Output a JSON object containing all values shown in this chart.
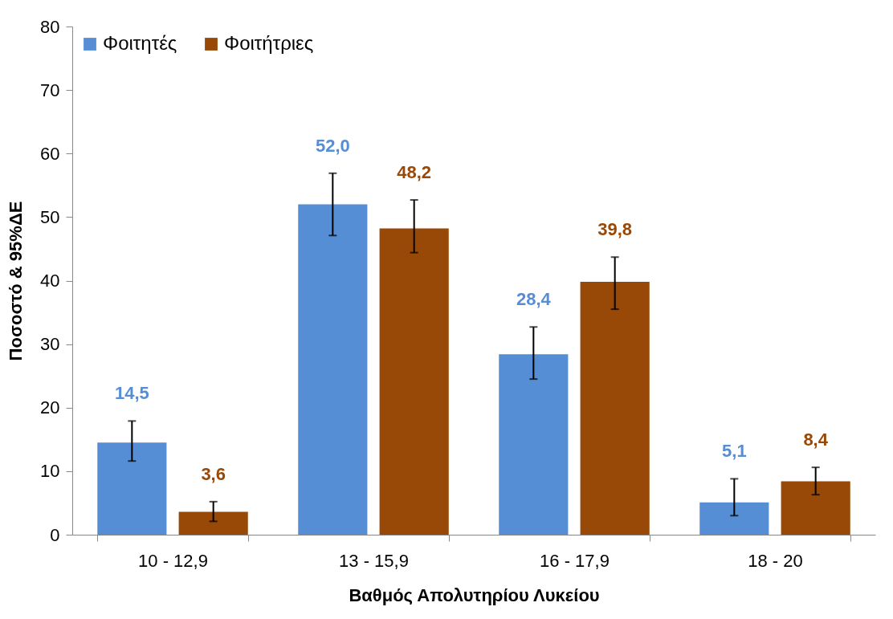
{
  "chart_data": {
    "type": "bar",
    "xlabel": "Βαθμός Απολυτηρίου Λυκείου",
    "ylabel": "Ποσοστό & 95%ΔΕ",
    "categories": [
      "10 - 12,9",
      "13 - 15,9",
      "16 - 17,9",
      "18 - 20"
    ],
    "series": [
      {
        "name": "Φοιτητές",
        "color": "#558ed5",
        "values": [
          14.5,
          52.0,
          28.4,
          5.1
        ],
        "value_labels": [
          "14,5",
          "52,0",
          "28,4",
          "5,1"
        ],
        "errors": [
          [
            11.6,
            17.9
          ],
          [
            47.1,
            56.9
          ],
          [
            24.5,
            32.7
          ],
          [
            3.0,
            8.8
          ]
        ]
      },
      {
        "name": "Φοιτήτριες",
        "color": "#984807",
        "values": [
          3.6,
          48.2,
          39.8,
          8.4
        ],
        "value_labels": [
          "3,6",
          "48,2",
          "39,8",
          "8,4"
        ],
        "errors": [
          [
            2.1,
            5.2
          ],
          [
            44.4,
            52.7
          ],
          [
            35.5,
            43.7
          ],
          [
            6.3,
            10.6
          ]
        ]
      }
    ],
    "ylim": [
      0,
      80
    ],
    "yticks": [
      0,
      10,
      20,
      30,
      40,
      50,
      60,
      70,
      80
    ],
    "grid": false,
    "legend": "top left"
  }
}
